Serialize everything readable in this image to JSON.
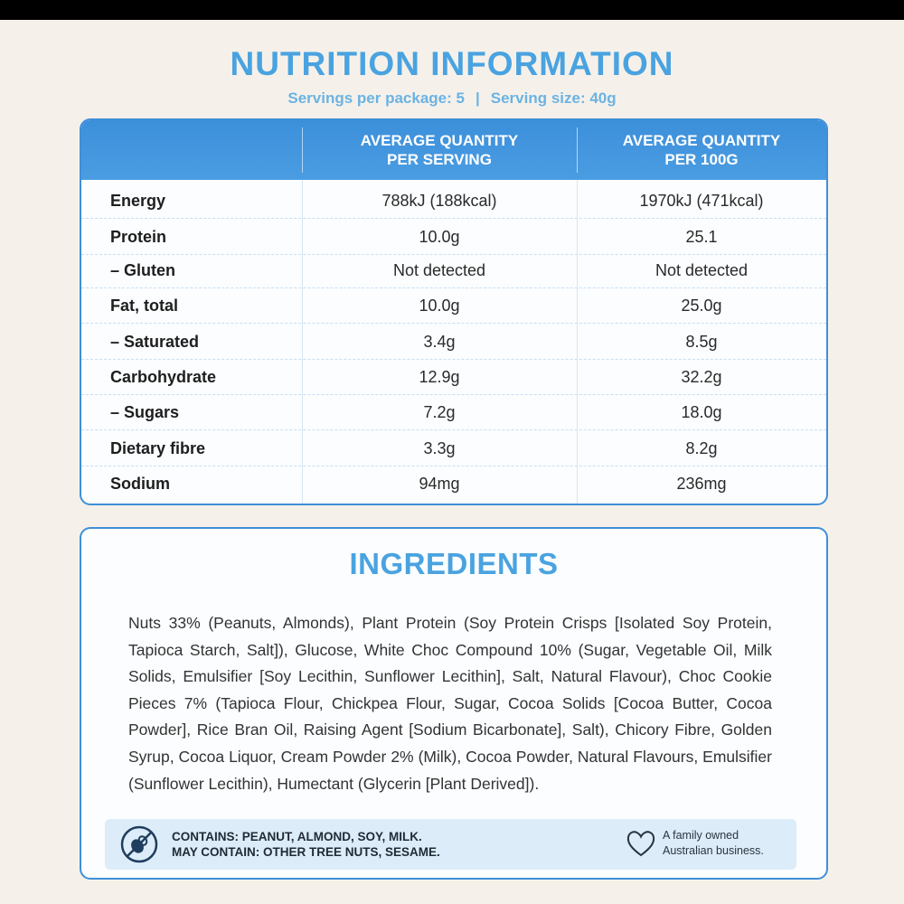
{
  "title": "NUTRITION INFORMATION",
  "servings": {
    "per_package": "Servings per package: 5",
    "separator": "|",
    "serving_size": "Serving size: 40g"
  },
  "table": {
    "col1_header_line1": "AVERAGE QUANTITY",
    "col1_header_line2": "PER SERVING",
    "col2_header_line1": "AVERAGE QUANTITY",
    "col2_header_line2": "PER 100G",
    "rows": [
      {
        "label": "Energy",
        "per_serving": "788kJ (188kcal)",
        "per_100g": "1970kJ (471kcal)"
      },
      {
        "label": "Protein",
        "per_serving": "10.0g",
        "per_100g": "25.1"
      },
      {
        "label": "– Gluten",
        "per_serving": "Not detected",
        "per_100g": "Not detected"
      },
      {
        "label": "Fat, total",
        "per_serving": "10.0g",
        "per_100g": "25.0g"
      },
      {
        "label": "– Saturated",
        "per_serving": "3.4g",
        "per_100g": "8.5g"
      },
      {
        "label": "Carbohydrate",
        "per_serving": "12.9g",
        "per_100g": "32.2g"
      },
      {
        "label": "– Sugars",
        "per_serving": "7.2g",
        "per_100g": "18.0g"
      },
      {
        "label": "Dietary fibre",
        "per_serving": "3.3g",
        "per_100g": "8.2g"
      },
      {
        "label": "Sodium",
        "per_serving": "94mg",
        "per_100g": "236mg"
      }
    ]
  },
  "ingredients": {
    "title": "INGREDIENTS",
    "text": "Nuts 33% (Peanuts, Almonds), Plant Protein (Soy Protein Crisps [Isolated Soy Protein, Tapioca Starch, Salt]), Glucose, White Choc Compound 10% (Sugar, Vegetable Oil, Milk Solids, Emulsifier [Soy Lecithin, Sunflower Lecithin], Salt, Natural Flavour), Choc Cookie Pieces 7% (Tapioca Flour, Chickpea Flour, Sugar, Cocoa Solids [Cocoa Butter, Cocoa Powder], Rice Bran Oil, Raising Agent [Sodium Bicarbonate], Salt), Chicory Fibre, Golden Syrup, Cocoa Liquor, Cream Powder 2% (Milk), Cocoa Powder, Natural Flavours, Emulsifier (Sunflower Lecithin), Humectant (Glycerin [Plant Derived])."
  },
  "allergens": {
    "contains": "CONTAINS: PEANUT, ALMOND, SOY, MILK.",
    "may_contain": "MAY CONTAIN: OTHER TREE NUTS, SESAME."
  },
  "family": {
    "line1": "A family owned",
    "line2": "Australian business."
  },
  "icons": [
    "no-nuts-icon",
    "heart-icon"
  ],
  "colors": {
    "accent": "#4aa3e0",
    "header": "#3c8fda",
    "background": "#f5f1ea"
  }
}
